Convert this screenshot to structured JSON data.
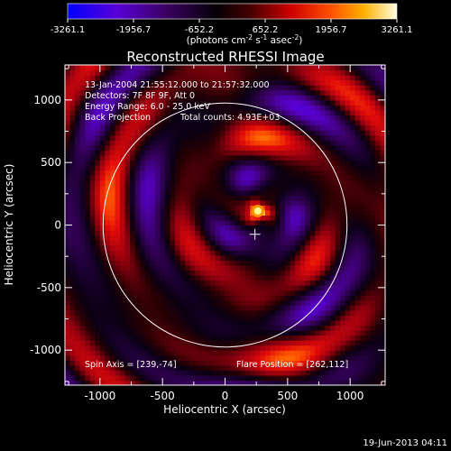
{
  "colorbar": {
    "ticks": [
      "-3261.1",
      "-1956.7",
      "-652.2",
      "652.2",
      "1956.7",
      "3261.1"
    ],
    "units_prefix": "(photons cm",
    "units_exp1": "-2",
    "units_mid": " s",
    "units_exp2": "-1",
    "units_mid2": " asec",
    "units_exp3": "-2",
    "units_suffix": ")",
    "range": [
      -3261.1,
      3261.1
    ]
  },
  "colors": {
    "colormap": [
      "#0000ff",
      "#6a00d0",
      "#2a0040",
      "#000000",
      "#7a0010",
      "#e00000",
      "#ff8000",
      "#ffff60",
      "#ffffff"
    ],
    "limb_circle": "#ffffff",
    "text": "#ffffff",
    "background": "#000000"
  },
  "chart_data": {
    "type": "heatmap",
    "title": "Reconstructed RHESSI Image",
    "xlabel": "Heliocentric X (arcsec)",
    "ylabel": "Heliocentric Y (arcsec)",
    "xlim": [
      -1280,
      1280
    ],
    "ylim": [
      -1280,
      1280
    ],
    "xticks": [
      -1000,
      -500,
      0,
      500,
      1000
    ],
    "yticks": [
      -1000,
      -500,
      0,
      500,
      1000
    ],
    "xtick_labels": [
      "-1000",
      "-500",
      "0",
      "500",
      "1000"
    ],
    "ytick_labels": [
      "-1000",
      "-500",
      "0",
      "500",
      "1000"
    ],
    "solar_limb_radius": 975,
    "flare_peak": {
      "x": 262,
      "y": 112,
      "value": 3261.1
    },
    "crosshair": {
      "x": 239,
      "y": -74
    },
    "annotations": {
      "time": "13-Jan-2004 21:55:12.000 to 21:57:32.000",
      "detectors": "Detectors: 7F 8F 9F, Att 0",
      "energy": "Energy Range: 6.0 - 25.0 keV",
      "method": "Back Projection",
      "counts": "Total counts: 4.93E+03",
      "spin_axis": "Spin Axis = [239,-74]",
      "flare_position": "Flare Position = [262,112]"
    }
  },
  "footer": {
    "timestamp": "19-Jun-2013 04:11"
  }
}
